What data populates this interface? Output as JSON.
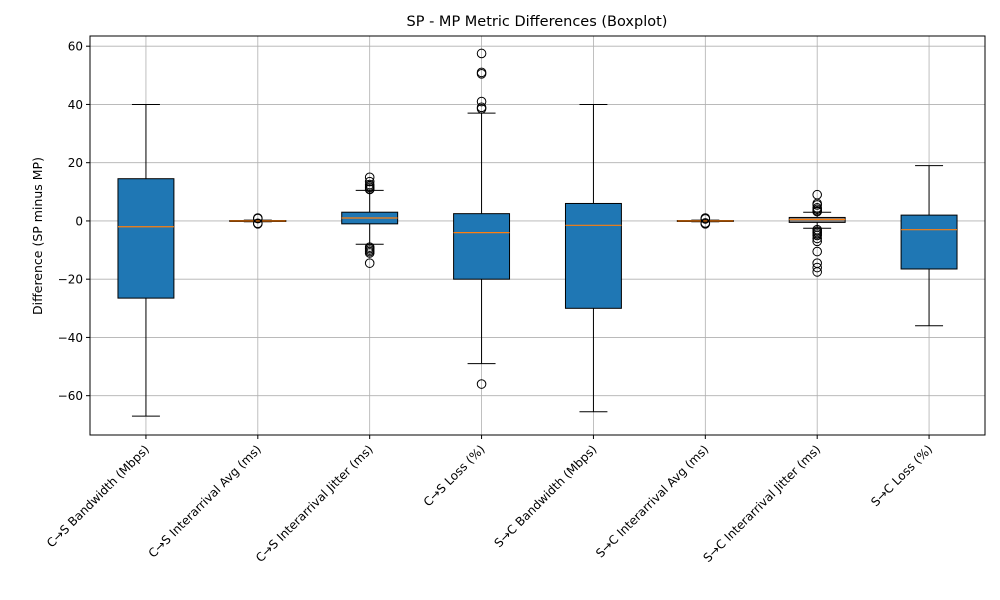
{
  "chart_data": {
    "type": "box",
    "title": "SP - MP Metric Differences (Boxplot)",
    "xlabel": "",
    "ylabel": "Difference (SP minus MP)",
    "ylim": [
      -73.5,
      63.5
    ],
    "yticks": [
      -60,
      -40,
      -20,
      0,
      20,
      40,
      60
    ],
    "ytick_labels": [
      "−60",
      "−40",
      "−20",
      "0",
      "20",
      "40",
      "60"
    ],
    "grid": true,
    "colors": {
      "box_fill": "#1f77b4",
      "box_fill_gray": "#808080",
      "median": "#ff7f0e",
      "grid": "#b0b0b0"
    },
    "categories": [
      "C→S Bandwidth (Mbps)",
      "C→S Interarrival Avg (ms)",
      "C→S Interarrival Jitter (ms)",
      "C→S Loss (%)",
      "S→C Bandwidth (Mbps)",
      "S→C Interarrival Avg (ms)",
      "S→C Interarrival Jitter (ms)",
      "S→C Loss (%)"
    ],
    "boxes": [
      {
        "whislo": -67,
        "q1": -26.5,
        "med": -2,
        "q3": 14.5,
        "whishi": 40,
        "fliers": [],
        "fill": "blue"
      },
      {
        "whislo": -0.3,
        "q1": -0.15,
        "med": 0,
        "q3": 0.15,
        "whishi": 0.3,
        "fliers": [
          1,
          0.8,
          -0.8,
          -1
        ],
        "fill": "blue"
      },
      {
        "whislo": -8,
        "q1": -1,
        "med": 1,
        "q3": 3,
        "whishi": 10.5,
        "fliers": [
          15,
          13.5,
          12.5,
          12,
          11.5,
          11,
          10.8,
          -9,
          -9.5,
          -10,
          -10.5,
          -11,
          -14.5
        ],
        "fill": "blue"
      },
      {
        "whislo": -49,
        "q1": -20,
        "med": -4,
        "q3": 2.5,
        "whishi": 37,
        "fliers": [
          57.5,
          51,
          50.5,
          41,
          39,
          38.5,
          -56
        ],
        "fill": "blue"
      },
      {
        "whislo": -65.5,
        "q1": -30,
        "med": -1.5,
        "q3": 6,
        "whishi": 40,
        "fliers": [],
        "fill": "blue"
      },
      {
        "whislo": -0.3,
        "q1": -0.15,
        "med": 0,
        "q3": 0.15,
        "whishi": 0.3,
        "fliers": [
          1,
          0.7,
          -0.7,
          -1
        ],
        "fill": "blue"
      },
      {
        "whislo": -2.5,
        "q1": -0.5,
        "med": 0.5,
        "q3": 1.2,
        "whishi": 3,
        "fliers": [
          9,
          6,
          5.5,
          4.5,
          4,
          3.5,
          3.2,
          -3,
          -3.5,
          -4,
          -4.5,
          -5,
          -6,
          -7,
          -10.5,
          -14.5,
          -16,
          -17.5
        ],
        "fill": "gray"
      },
      {
        "whislo": -36,
        "q1": -16.5,
        "med": -3,
        "q3": 2,
        "whishi": 19,
        "fliers": [],
        "fill": "blue"
      }
    ]
  }
}
